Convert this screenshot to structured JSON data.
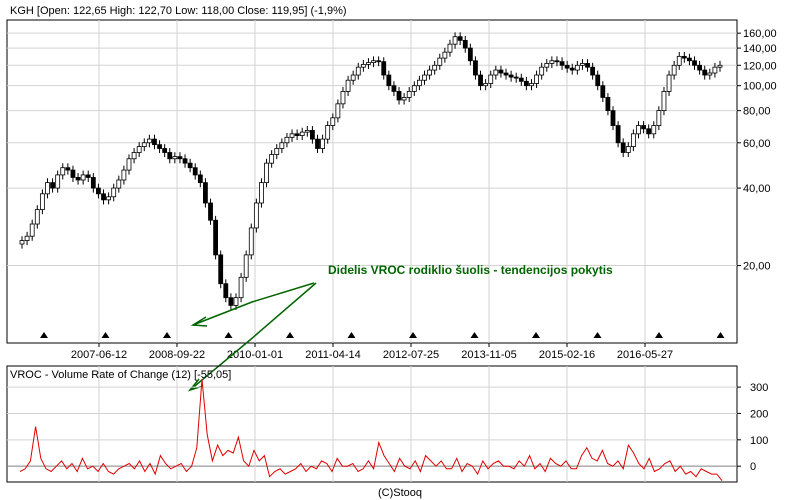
{
  "main_header": "KGH [Open: 122,65  High: 122,70  Low: 118,00  Close: 119,95] (-1,9%)",
  "indicator_header": "VROC - Volume Rate of Change (12) [-55,05]",
  "annotation": "Didelis VROC rodiklio šuolis - tendencijos pokytis",
  "footer": "(C)Stooq",
  "colors": {
    "background": "#ffffff",
    "grid": "#d3d3d3",
    "axis": "#000000",
    "candle": "#000000",
    "vroc_line": "#e00000",
    "zero_line": "#808080",
    "annotation": "#006400"
  },
  "chart_data": [
    {
      "type": "candlestick",
      "title": "KGH [Open: 122,65  High: 122,70  Low: 118,00  Close: 119,95] (-1,9%)",
      "y_scale": "log",
      "ylim": [
        10,
        180
      ],
      "y_ticks": [
        20,
        40,
        60,
        80,
        100,
        120,
        140,
        160
      ],
      "y_tick_labels": [
        "20,00",
        "40,00",
        "60,00",
        "80,00",
        "100,00",
        "120,00",
        "140,00",
        "160,00"
      ],
      "x_tick_labels": [
        "2007-06-12",
        "2008-09-22",
        "2010-01-01",
        "2011-04-14",
        "2012-07-25",
        "2013-11-05",
        "2015-02-16",
        "2016-05-27"
      ],
      "grid": true,
      "last": {
        "open": 122.65,
        "high": 122.7,
        "low": 118.0,
        "close": 119.95,
        "change_pct": -1.9
      },
      "weekly_close_approx": [
        25,
        26,
        29,
        33,
        38,
        42,
        40,
        45,
        48,
        47,
        44,
        43,
        45,
        44,
        40,
        38,
        36,
        37,
        40,
        43,
        47,
        52,
        55,
        58,
        60,
        62,
        59,
        57,
        55,
        52,
        53,
        52,
        50,
        48,
        45,
        42,
        35,
        30,
        22,
        17,
        15,
        14,
        15,
        18,
        22,
        28,
        35,
        42,
        50,
        54,
        57,
        60,
        63,
        65,
        64,
        66,
        67,
        62,
        57,
        62,
        70,
        75,
        85,
        95,
        105,
        110,
        118,
        121,
        123,
        125,
        124,
        110,
        100,
        95,
        88,
        90,
        95,
        100,
        105,
        110,
        115,
        120,
        128,
        135,
        145,
        155,
        150,
        140,
        125,
        110,
        100,
        102,
        110,
        115,
        112,
        110,
        108,
        107,
        104,
        100,
        102,
        110,
        118,
        122,
        125,
        124,
        120,
        117,
        115,
        120,
        122,
        118,
        110,
        100,
        90,
        80,
        70,
        60,
        55,
        58,
        65,
        70,
        68,
        65,
        70,
        80,
        95,
        110,
        120,
        130,
        128,
        125,
        120,
        115,
        110,
        112,
        118,
        120
      ]
    },
    {
      "type": "line",
      "title": "VROC - Volume Rate of Change (12) [-55,05]",
      "ylim": [
        -60,
        380
      ],
      "y_ticks": [
        0,
        100,
        200,
        300
      ],
      "y_tick_labels": [
        "0",
        "100",
        "200",
        "300"
      ],
      "zero_line": 0,
      "last_value": -55.05,
      "values": [
        -20,
        -10,
        20,
        150,
        30,
        -10,
        -20,
        0,
        20,
        -10,
        10,
        -20,
        30,
        -10,
        0,
        -20,
        10,
        -20,
        -30,
        -10,
        0,
        10,
        -10,
        20,
        -20,
        10,
        -30,
        40,
        10,
        -10,
        0,
        10,
        -20,
        0,
        70,
        330,
        120,
        20,
        80,
        40,
        60,
        50,
        110,
        20,
        0,
        60,
        20,
        40,
        -40,
        -20,
        -10,
        -30,
        -20,
        -10,
        10,
        -20,
        0,
        -10,
        20,
        10,
        -20,
        30,
        0,
        0,
        10,
        -20,
        -10,
        20,
        -10,
        90,
        40,
        10,
        -20,
        30,
        0,
        -10,
        20,
        -20,
        40,
        20,
        0,
        20,
        -10,
        -10,
        30,
        -20,
        10,
        0,
        -30,
        20,
        -10,
        10,
        20,
        0,
        0,
        -10,
        20,
        0,
        40,
        -10,
        10,
        -20,
        30,
        10,
        0,
        20,
        -10,
        -10,
        40,
        70,
        30,
        20,
        60,
        10,
        0,
        20,
        -10,
        80,
        50,
        10,
        -10,
        30,
        -20,
        -10,
        10,
        20,
        -20,
        0,
        -30,
        -20,
        -40,
        -10,
        -20,
        -30,
        -30,
        -55
      ]
    }
  ]
}
